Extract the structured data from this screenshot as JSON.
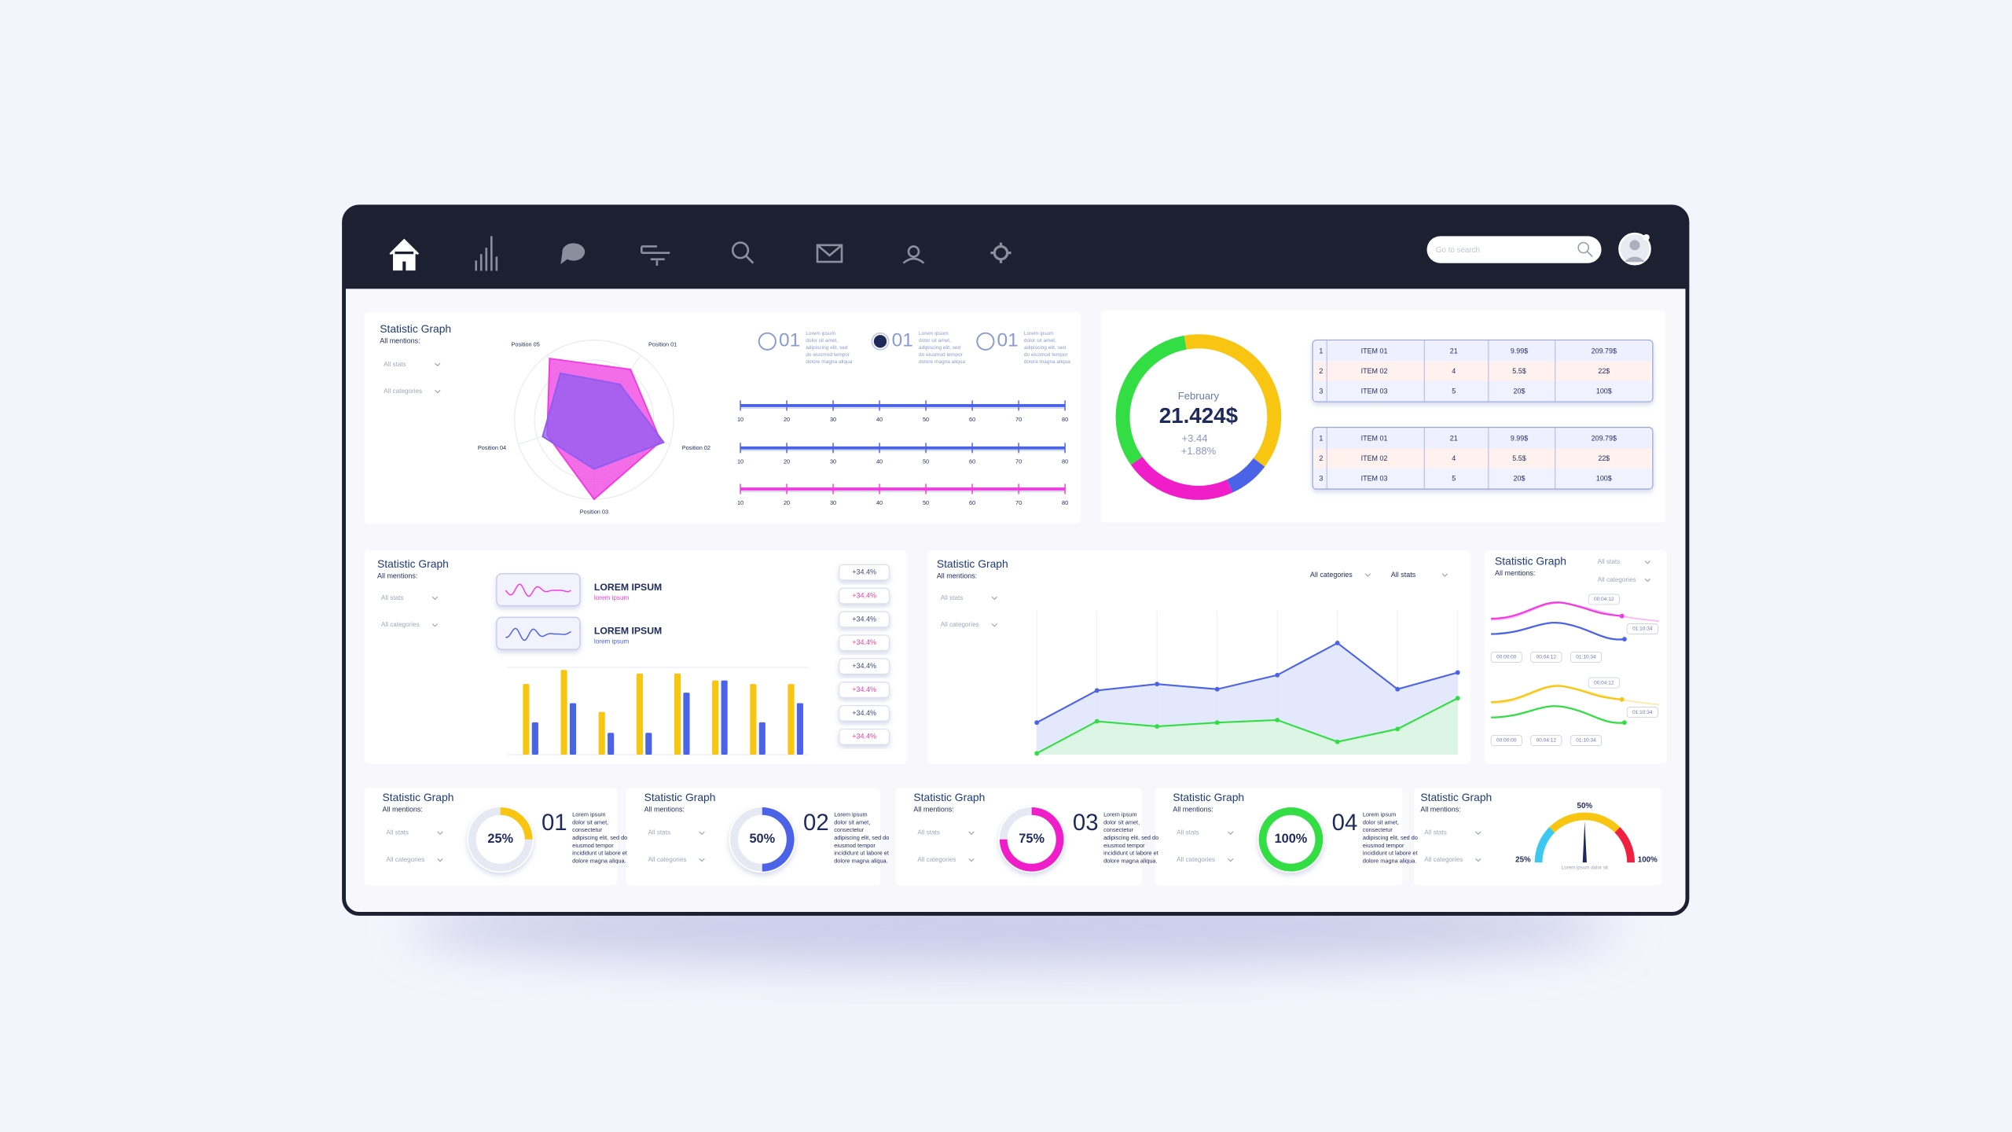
{
  "nav": {
    "search_placeholder": "Go to search"
  },
  "radar_panel": {
    "title": "Statistic Graph",
    "subtitle": "All mentions:",
    "filters": [
      "All stats",
      "All categories"
    ],
    "radar": {
      "type": "radar",
      "axes": [
        "Position 01",
        "Position 02",
        "Position 03",
        "Position 04",
        "Position 05"
      ],
      "rlim": [
        0,
        100
      ],
      "series": [
        {
          "color": "#f03ce0",
          "values": [
            78,
            88,
            100,
            62,
            95
          ]
        },
        {
          "color": "#8f5cf0",
          "values": [
            55,
            92,
            62,
            68,
            72
          ]
        }
      ]
    },
    "options": [
      {
        "number": "01",
        "selected": false,
        "lines": [
          "Lorem ipsum",
          "dolor sit amet,",
          "adipiscing elit, sed",
          "do eiusmod tempor",
          "dolore magna aliqua"
        ]
      },
      {
        "number": "01",
        "selected": true,
        "lines": [
          "Lorem ipsum",
          "dolor sit amet,",
          "adipiscing elit, sed",
          "do eiusmod tempor",
          "dolore magna aliqua"
        ]
      },
      {
        "number": "01",
        "selected": false,
        "lines": [
          "Lorem ipsum",
          "dolor sit amet,",
          "adipiscing elit, sed",
          "do eiusmod tempor",
          "dolore magna aliqua"
        ]
      }
    ],
    "sliders": {
      "type": "scale",
      "xlim": [
        10,
        80
      ],
      "xticks": [
        10,
        20,
        30,
        40,
        50,
        60,
        70,
        80
      ],
      "colors": [
        "#4b63e6",
        "#4b63e6",
        "#f03ce0"
      ]
    }
  },
  "donut_panel": {
    "month": "February",
    "amount": "21.424$",
    "changes": [
      "+3.44",
      "+1.88%"
    ],
    "donut": {
      "type": "donut",
      "values": [
        38,
        8,
        22,
        32
      ],
      "colors": [
        "#f8c512",
        "#4b63e6",
        "#f01ec8",
        "#33dd44"
      ]
    },
    "tables": [
      {
        "rows": [
          [
            "1",
            "ITEM 01",
            "21",
            "9.99$",
            "209.79$"
          ],
          [
            "2",
            "ITEM 02",
            "4",
            "5.5$",
            "22$"
          ],
          [
            "3",
            "ITEM 03",
            "5",
            "20$",
            "100$"
          ]
        ]
      },
      {
        "rows": [
          [
            "1",
            "ITEM 01",
            "21",
            "9.99$",
            "209.79$"
          ],
          [
            "2",
            "ITEM 02",
            "4",
            "5.5$",
            "22$"
          ],
          [
            "3",
            "ITEM 03",
            "5",
            "20$",
            "100$"
          ]
        ]
      }
    ]
  },
  "bars_panel": {
    "title": "Statistic Graph",
    "subtitle": "All mentions:",
    "filters": [
      "All stats",
      "All categories"
    ],
    "cards": [
      {
        "title": "LOREM IPSUM",
        "subtitle": "lorem ipsum",
        "color": "#f03ce0"
      },
      {
        "title": "LOREM IPSUM",
        "subtitle": "lorem ipsum",
        "color": "#4b63e6"
      }
    ],
    "chart": {
      "type": "bar",
      "categories": [
        null,
        null,
        null,
        null,
        null,
        null,
        null,
        null
      ],
      "ylim": [
        0,
        100
      ],
      "series": [
        {
          "color": "#f8c512",
          "values": [
            81,
            97,
            49,
            93,
            93,
            85,
            81,
            81
          ]
        },
        {
          "color": "#4b63e6",
          "values": [
            37,
            59,
            25,
            25,
            71,
            85,
            37,
            59
          ]
        }
      ]
    },
    "badges": [
      "+34.4%",
      "+34.4%",
      "+34.4%",
      "+34.4%",
      "+34.4%",
      "+34.4%",
      "+34.4%",
      "+34.4%"
    ],
    "badge_colors": [
      "#3a4a8a",
      "#f03ca0"
    ]
  },
  "line_panel": {
    "title": "Statistic Graph",
    "subtitle": "All mentions:",
    "filters": [
      "All stats",
      "All categories"
    ],
    "dropdowns": [
      "All categories",
      "All stats"
    ],
    "chart": {
      "type": "line",
      "categories": [
        null,
        null,
        null,
        null,
        null,
        null,
        null,
        null
      ],
      "ylim": [
        0,
        100
      ],
      "series": [
        {
          "color": "#4b63e6",
          "fill": "#dfe4fb",
          "values": [
            25,
            50,
            55,
            51,
            62,
            87,
            51,
            64
          ]
        },
        {
          "color": "#33dd44",
          "fill": "#dcf7e0",
          "values": [
            1,
            26,
            22,
            25,
            27,
            10,
            20,
            44
          ]
        }
      ]
    }
  },
  "time_panel": {
    "title": "Statistic Graph",
    "subtitle": "All mentions:",
    "filters": [
      "All stats",
      "All categories"
    ],
    "charts": [
      {
        "times": [
          "00:00:00",
          "00:04:12",
          "01:10:34"
        ],
        "callouts": [
          "00:04:12",
          "01:10:34"
        ],
        "colors": [
          "#f03ce0",
          "#4b63e6"
        ]
      },
      {
        "times": [
          "00:00:00",
          "00:04:12",
          "01:10:34"
        ],
        "callouts": [
          "00:04:12",
          "01:10:34"
        ],
        "colors": [
          "#f8c512",
          "#33dd44"
        ]
      }
    ]
  },
  "kpis": [
    {
      "title": "Statistic Graph",
      "subtitle": "All mentions:",
      "filters": [
        "All stats",
        "All categories"
      ],
      "ring": {
        "type": "ring",
        "value": 25,
        "value_label": "25%",
        "color": "#f8c512"
      },
      "number": "01",
      "lines": [
        "Lorem ipsum",
        "dolor sit amet,",
        "consectetur",
        "adipiscing elit, sed do",
        "eiusmod tempor",
        "incididunt ut labore et",
        "dolore magna aliqua."
      ]
    },
    {
      "title": "Statistic Graph",
      "subtitle": "All mentions:",
      "filters": [
        "All stats",
        "All categories"
      ],
      "ring": {
        "type": "ring",
        "value": 50,
        "value_label": "50%",
        "color": "#4b63e6"
      },
      "number": "02",
      "lines": [
        "Lorem ipsum",
        "dolor sit amet,",
        "consectetur",
        "adipiscing elit, sed do",
        "eiusmod tempor",
        "incididunt ut labore et",
        "dolore magna aliqua."
      ]
    },
    {
      "title": "Statistic Graph",
      "subtitle": "All mentions:",
      "filters": [
        "All stats",
        "All categories"
      ],
      "ring": {
        "type": "ring",
        "value": 75,
        "value_label": "75%",
        "color": "#f01ec8"
      },
      "number": "03",
      "lines": [
        "Lorem ipsum",
        "dolor sit amet,",
        "consectetur",
        "adipiscing elit, sed do",
        "eiusmod tempor",
        "incididunt ut labore et",
        "dolore magna aliqua."
      ]
    },
    {
      "title": "Statistic Graph",
      "subtitle": "All mentions:",
      "filters": [
        "All stats",
        "All categories"
      ],
      "ring": {
        "type": "ring",
        "value": 100,
        "value_label": "100%",
        "color": "#33dd44"
      },
      "number": "04",
      "lines": [
        "Lorem ipsum",
        "dolor sit amet,",
        "consectetur",
        "adipiscing elit, sed do",
        "eiusmod tempor",
        "incididunt ut labore et",
        "dolore magna aliqua."
      ]
    }
  ],
  "gauge_panel": {
    "title": "Statistic Graph",
    "subtitle": "All mentions:",
    "filters": [
      "All stats",
      "All categories"
    ],
    "gauge": {
      "type": "gauge",
      "ticks": [
        {
          "value": 25,
          "label": "25%"
        },
        {
          "value": 50,
          "label": "50%"
        },
        {
          "value": 100,
          "label": "100%"
        }
      ],
      "colors": [
        "#3ec8f0",
        "#f8c512",
        "#f02040"
      ],
      "caption": "Lorem ipsum dolor sit"
    }
  }
}
